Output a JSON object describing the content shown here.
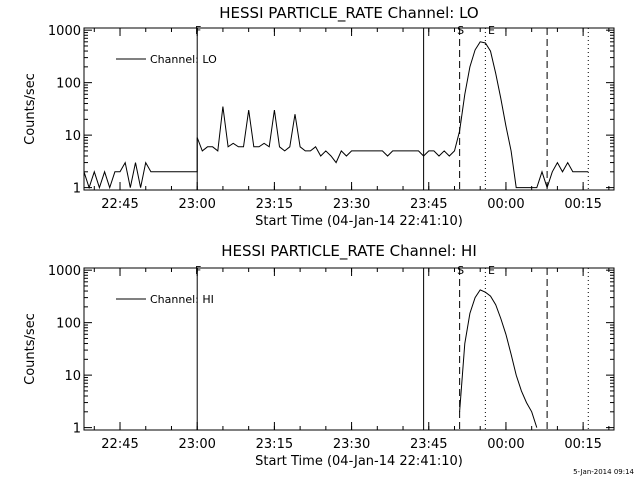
{
  "chart_data": [
    {
      "type": "line",
      "title": "HESSI PARTICLE_RATE Channel: LO",
      "xlabel": "Start Time (04-Jan-14 22:41:10)",
      "ylabel": "Counts/sec",
      "yscale": "log",
      "ylim": [
        0.9,
        1100
      ],
      "xlim": [
        "22:38",
        "00:21"
      ],
      "x_ticks": [
        "22:45",
        "23:00",
        "23:15",
        "23:30",
        "23:45",
        "00:00",
        "00:15"
      ],
      "y_ticks": [
        "1",
        "10",
        "100",
        "1000"
      ],
      "legend": {
        "label": "Channel: LO",
        "placement": "top-left"
      },
      "grid": false,
      "markers": [
        {
          "time": "23:00",
          "label": "F",
          "style": "solid"
        },
        {
          "time": "23:44",
          "label": "",
          "style": "solid"
        },
        {
          "time": "23:51",
          "label": "S",
          "style": "dashed"
        },
        {
          "time": "23:56",
          "label": "",
          "style": "dotted"
        },
        {
          "time": "23:57",
          "label": "E",
          "style": "none"
        },
        {
          "time": "00:08",
          "label": "",
          "style": "dashed"
        },
        {
          "time": "00:16",
          "label": "",
          "style": "dotted"
        }
      ],
      "series": [
        {
          "name": "Channel: LO",
          "x": [
            "22:38",
            "22:39",
            "22:40",
            "22:41",
            "22:42",
            "22:43",
            "22:44",
            "22:45",
            "22:46",
            "22:47",
            "22:48",
            "22:49",
            "22:50",
            "22:51",
            "22:52",
            "22:53",
            "22:54",
            "22:55",
            "22:56",
            "22:57",
            "22:58",
            "22:59",
            "23:00",
            "23:00",
            "23:01",
            "23:02",
            "23:03",
            "23:04",
            "23:05",
            "23:06",
            "23:07",
            "23:08",
            "23:09",
            "23:10",
            "23:11",
            "23:12",
            "23:13",
            "23:14",
            "23:15",
            "23:16",
            "23:17",
            "23:18",
            "23:19",
            "23:20",
            "23:21",
            "23:22",
            "23:23",
            "23:24",
            "23:25",
            "23:26",
            "23:27",
            "23:28",
            "23:29",
            "23:30",
            "23:31",
            "23:32",
            "23:33",
            "23:34",
            "23:35",
            "23:36",
            "23:37",
            "23:38",
            "23:39",
            "23:40",
            "23:41",
            "23:42",
            "23:43",
            "23:44",
            "23:45",
            "23:46",
            "23:47",
            "23:48",
            "23:49",
            "23:50",
            "23:51",
            "23:52",
            "23:53",
            "23:54",
            "23:55",
            "23:56",
            "23:57",
            "23:58",
            "23:59",
            "00:00",
            "00:01",
            "00:02",
            "00:03",
            "00:04",
            "00:05",
            "00:06",
            "00:07",
            "00:08",
            "00:09",
            "00:10",
            "00:11",
            "00:12",
            "00:13",
            "00:14",
            "00:15",
            "00:16"
          ],
          "y": [
            2,
            1,
            2,
            1,
            2,
            1,
            2,
            2,
            3,
            1,
            3,
            1,
            3,
            2,
            2,
            2,
            2,
            2,
            2,
            2,
            2,
            2,
            2,
            9,
            5,
            6,
            6,
            5,
            35,
            6,
            7,
            6,
            6,
            30,
            6,
            6,
            7,
            6,
            30,
            6,
            5,
            6,
            25,
            6,
            5,
            5,
            6,
            4,
            5,
            4,
            3,
            5,
            4,
            5,
            5,
            5,
            5,
            5,
            5,
            5,
            4,
            5,
            5,
            5,
            5,
            5,
            5,
            4,
            5,
            5,
            4,
            5,
            4,
            5,
            12,
            60,
            200,
            420,
            600,
            570,
            400,
            150,
            50,
            15,
            5,
            1,
            1,
            1,
            1,
            1,
            2,
            1,
            2,
            3,
            2,
            3,
            2,
            2,
            2,
            2
          ]
        }
      ]
    },
    {
      "type": "line",
      "title": "HESSI PARTICLE_RATE Channel: HI",
      "xlabel": "Start Time (04-Jan-14 22:41:10)",
      "ylabel": "Counts/sec",
      "yscale": "log",
      "ylim": [
        0.9,
        1100
      ],
      "xlim": [
        "22:38",
        "00:21"
      ],
      "x_ticks": [
        "22:45",
        "23:00",
        "23:15",
        "23:30",
        "23:45",
        "00:00",
        "00:15"
      ],
      "y_ticks": [
        "1",
        "10",
        "100",
        "1000"
      ],
      "legend": {
        "label": "Channel: HI",
        "placement": "top-left"
      },
      "grid": false,
      "markers": [
        {
          "time": "23:00",
          "label": "F",
          "style": "solid"
        },
        {
          "time": "23:44",
          "label": "",
          "style": "solid"
        },
        {
          "time": "23:51",
          "label": "S",
          "style": "dashed"
        },
        {
          "time": "23:56",
          "label": "",
          "style": "dotted"
        },
        {
          "time": "23:57",
          "label": "E",
          "style": "none"
        },
        {
          "time": "00:08",
          "label": "",
          "style": "dashed"
        },
        {
          "time": "00:16",
          "label": "",
          "style": "dotted"
        }
      ],
      "series": [
        {
          "name": "Channel: HI",
          "x": [
            "23:51",
            "23:52",
            "23:53",
            "23:54",
            "23:55",
            "23:56",
            "23:57",
            "23:58",
            "23:59",
            "00:00",
            "00:01",
            "00:02",
            "00:03",
            "00:04",
            "00:05",
            "00:06"
          ],
          "y": [
            2,
            40,
            150,
            300,
            420,
            380,
            320,
            220,
            120,
            60,
            25,
            10,
            5,
            3,
            2,
            1
          ]
        }
      ]
    }
  ],
  "footer": {
    "timestamp": "5-Jan-2014 09:14"
  }
}
